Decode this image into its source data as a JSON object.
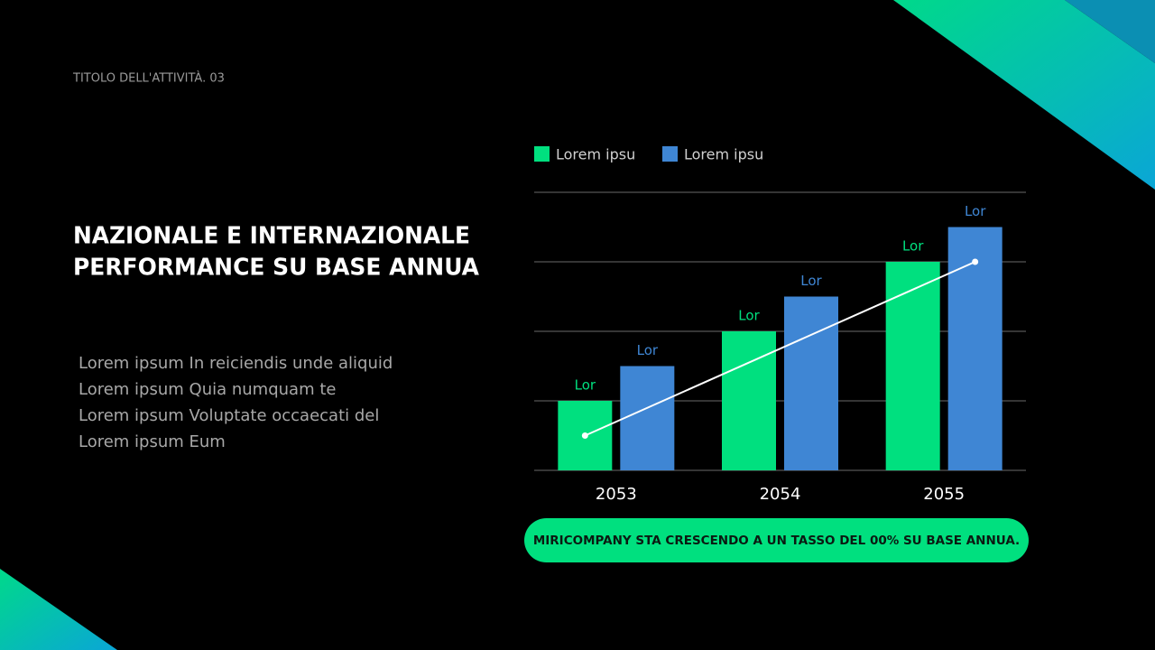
{
  "header": {
    "label": "TITOLO DELL'ATTIVITÀ. 03"
  },
  "title": {
    "lines": [
      "NAZIONALE E INTERNAZIONALE",
      "PERFORMANCE SU BASE ANNUA"
    ]
  },
  "body": {
    "lines": [
      "Lorem ipsum In reiciendis unde aliquid",
      "Lorem ipsum Quia numquam te",
      "Lorem ipsum Voluptate occaecati del",
      "Lorem ipsum Eum"
    ]
  },
  "callout": {
    "text": "MIRICOMPANY STA CRESCENDO A UN TASSO DEL 00% SU BASE ANNUA."
  },
  "chart_data": {
    "type": "bar",
    "categories": [
      "2053",
      "2054",
      "2055"
    ],
    "series": [
      {
        "name": "Lorem ipsu",
        "color": "#00e07f",
        "values": [
          1,
          2,
          3
        ],
        "value_labels": [
          "Lor",
          "Lor",
          "Lor"
        ]
      },
      {
        "name": "Lorem ipsu",
        "color": "#3f86d4",
        "values": [
          1.5,
          2.5,
          3.5
        ],
        "value_labels": [
          "Lor",
          "Lor",
          "Lor"
        ]
      }
    ],
    "trend_line": {
      "color": "#ffffff",
      "start": 0.5,
      "end": 3
    },
    "ylim": [
      0,
      4
    ],
    "yticks": [
      0,
      1,
      2,
      3,
      4
    ],
    "grid": true,
    "legend": "top-left"
  }
}
